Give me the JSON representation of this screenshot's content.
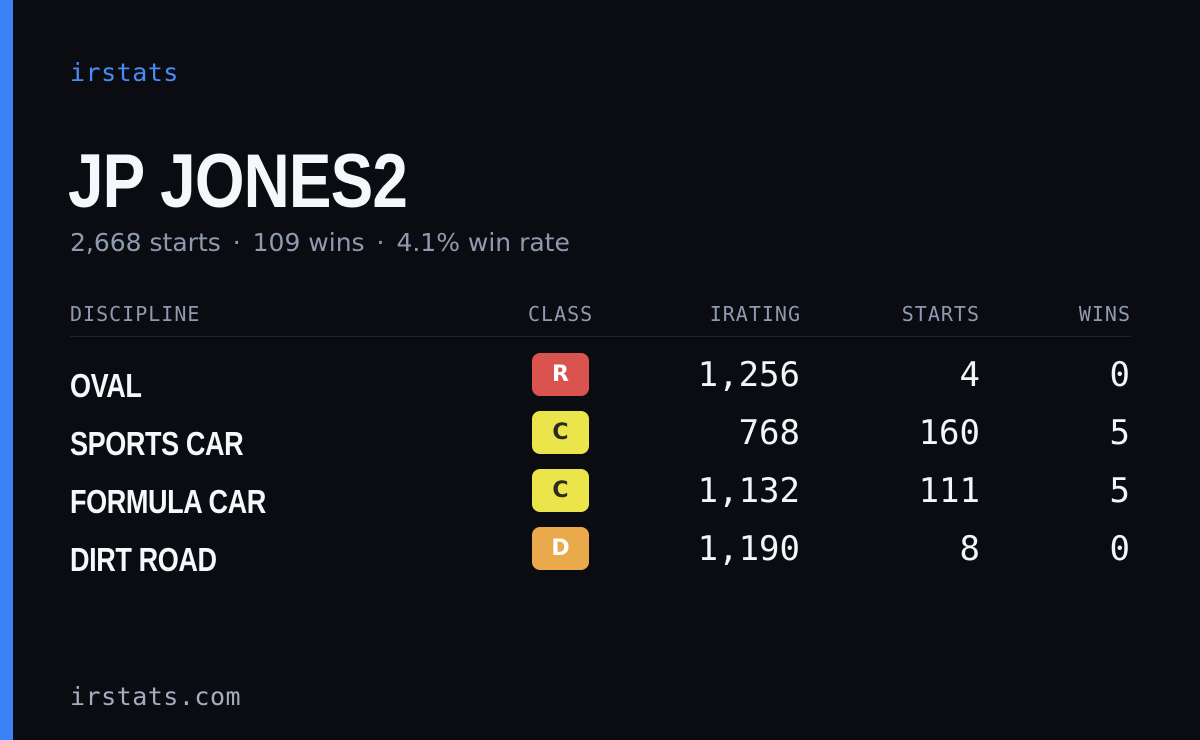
{
  "brand": "irstats",
  "driver": {
    "name": "JP JONES2",
    "starts_text": "2,668 starts",
    "wins_text": "109 wins",
    "win_rate_text": "4.1% win rate",
    "separator": "·"
  },
  "table": {
    "headers": {
      "discipline": "DISCIPLINE",
      "class": "CLASS",
      "irating": "IRATING",
      "starts": "STARTS",
      "wins": "WINS"
    },
    "rows": [
      {
        "discipline": "OVAL",
        "class": "R",
        "class_bg": "#d9534f",
        "class_fg": "#ffffff",
        "irating": "1,256",
        "starts": "4",
        "wins": "0"
      },
      {
        "discipline": "SPORTS CAR",
        "class": "C",
        "class_bg": "#ebe44a",
        "class_fg": "#2a2a20",
        "irating": "768",
        "starts": "160",
        "wins": "5"
      },
      {
        "discipline": "FORMULA CAR",
        "class": "C",
        "class_bg": "#ebe44a",
        "class_fg": "#2a2a20",
        "irating": "1,132",
        "starts": "111",
        "wins": "5"
      },
      {
        "discipline": "DIRT ROAD",
        "class": "D",
        "class_bg": "#eaa94a",
        "class_fg": "#ffffff",
        "irating": "1,190",
        "starts": "8",
        "wins": "0"
      }
    ]
  },
  "footer": {
    "domain": "irstats.com"
  },
  "colors": {
    "accent": "#3b82f6",
    "background": "#0a0c12",
    "muted": "#8f9ab0"
  }
}
